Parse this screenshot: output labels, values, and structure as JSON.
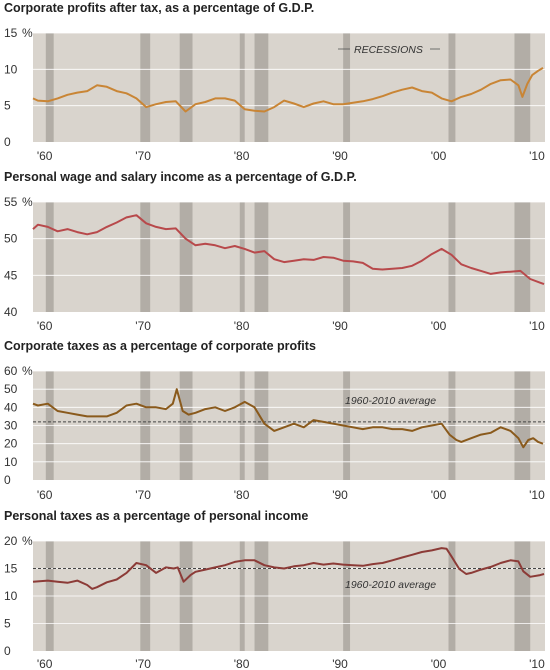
{
  "colors": {
    "plot_background": "#d9d4cd",
    "recession_band": "#b2ada6",
    "gridline": "#ffffff",
    "orange_line": "#c98535",
    "red_line": "#b8494b",
    "brown_line": "#8a5a1c",
    "dark_red_line": "#8c3b37"
  },
  "annotations": {
    "recessions": "RECESSIONS",
    "average": "1960-2010 average"
  },
  "chart_data": [
    {
      "type": "line",
      "title": "Corporate profits after tax, as a percentage of G.D.P.",
      "y_ticks": [
        "15",
        "10",
        "5",
        "0"
      ],
      "y_unit": "%",
      "x_ticks": [
        "'60",
        "'70",
        "'80",
        "'90",
        "'00",
        "'10"
      ],
      "xlim": [
        1959,
        2011
      ],
      "ylim": [
        0,
        15
      ],
      "recessions": [
        [
          1960.3,
          1961.1
        ],
        [
          1969.9,
          1970.9
        ],
        [
          1973.9,
          1975.2
        ],
        [
          1980.0,
          1980.5
        ],
        [
          1981.5,
          1982.9
        ],
        [
          1990.5,
          1991.2
        ],
        [
          2001.2,
          2001.9
        ],
        [
          2007.9,
          2009.5
        ]
      ],
      "average": null,
      "series": [
        {
          "color": "orange_line",
          "x": [
            1959,
            1959.5,
            1960.5,
            1961.5,
            1962.5,
            1963.5,
            1964.5,
            1965.5,
            1966.5,
            1967.5,
            1968.5,
            1969.5,
            1970.5,
            1971.5,
            1972.5,
            1973.5,
            1974.5,
            1975.5,
            1976.5,
            1977.5,
            1978.5,
            1979.5,
            1980.5,
            1981.5,
            1982.5,
            1983.5,
            1984.5,
            1985.5,
            1986.5,
            1987.5,
            1988.5,
            1989.5,
            1990.5,
            1991.5,
            1992.5,
            1993.5,
            1994.5,
            1995.5,
            1996.5,
            1997.5,
            1998.5,
            1999.5,
            2000.5,
            2001.5,
            2002.5,
            2003.5,
            2004.5,
            2005.5,
            2006.5,
            2007.5,
            2008.3,
            2008.7,
            2009.2,
            2009.7,
            2010.3,
            2010.8
          ],
          "values": [
            6.0,
            5.7,
            5.6,
            6.0,
            6.5,
            6.8,
            7.0,
            7.8,
            7.6,
            7.0,
            6.7,
            6.0,
            4.8,
            5.2,
            5.5,
            5.6,
            4.2,
            5.2,
            5.5,
            6.0,
            6.0,
            5.7,
            4.5,
            4.3,
            4.2,
            4.8,
            5.7,
            5.3,
            4.8,
            5.3,
            5.6,
            5.2,
            5.2,
            5.4,
            5.6,
            5.9,
            6.3,
            6.8,
            7.2,
            7.5,
            7.0,
            6.8,
            6.0,
            5.6,
            6.2,
            6.6,
            7.2,
            8.0,
            8.5,
            8.6,
            7.8,
            6.2,
            8.0,
            9.2,
            9.8,
            10.2
          ]
        }
      ]
    },
    {
      "type": "line",
      "title": "Personal wage and salary income as a percentage of G.D.P.",
      "y_ticks": [
        "55",
        "50",
        "45",
        "40"
      ],
      "y_unit": "%",
      "x_ticks": [
        "'60",
        "'70",
        "'80",
        "'90",
        "'00",
        "'10"
      ],
      "xlim": [
        1959,
        2011
      ],
      "ylim": [
        40,
        55
      ],
      "recessions": [
        [
          1960.3,
          1961.1
        ],
        [
          1969.9,
          1970.9
        ],
        [
          1973.9,
          1975.2
        ],
        [
          1980.0,
          1980.5
        ],
        [
          1981.5,
          1982.9
        ],
        [
          1990.5,
          1991.2
        ],
        [
          2001.2,
          2001.9
        ],
        [
          2007.9,
          2009.5
        ]
      ],
      "average": null,
      "series": [
        {
          "color": "red_line",
          "x": [
            1959,
            1959.5,
            1960.5,
            1961.5,
            1962.5,
            1963.5,
            1964.5,
            1965.5,
            1966.5,
            1967.5,
            1968.5,
            1969.5,
            1970.5,
            1971.5,
            1972.5,
            1973.5,
            1974.5,
            1975.5,
            1976.5,
            1977.5,
            1978.5,
            1979.5,
            1980.5,
            1981.5,
            1982.5,
            1983.5,
            1984.5,
            1985.5,
            1986.5,
            1987.5,
            1988.5,
            1989.5,
            1990.5,
            1991.5,
            1992.5,
            1993.5,
            1994.5,
            1995.5,
            1996.5,
            1997.5,
            1998.5,
            1999.5,
            2000.5,
            2001.5,
            2002.5,
            2003.5,
            2004.5,
            2005.5,
            2006.5,
            2007.5,
            2008.5,
            2009.5,
            2010.5,
            2010.9
          ],
          "values": [
            51.3,
            51.9,
            51.6,
            51.0,
            51.3,
            50.9,
            50.6,
            50.9,
            51.6,
            52.2,
            52.9,
            53.2,
            52.1,
            51.6,
            51.3,
            51.4,
            50.0,
            49.1,
            49.3,
            49.1,
            48.7,
            49.0,
            48.6,
            48.1,
            48.3,
            47.2,
            46.8,
            47.0,
            47.2,
            47.1,
            47.5,
            47.4,
            47.0,
            46.9,
            46.7,
            45.9,
            45.8,
            45.9,
            46.0,
            46.3,
            47.0,
            47.9,
            48.6,
            47.8,
            46.5,
            46.0,
            45.6,
            45.2,
            45.4,
            45.5,
            45.6,
            44.5,
            44.0,
            43.8
          ]
        }
      ]
    },
    {
      "type": "line",
      "title": "Corporate taxes as a percentage of corporate profits",
      "y_ticks": [
        "60",
        "50",
        "40",
        "30",
        "20",
        "10",
        "0"
      ],
      "y_unit": "%",
      "x_ticks": [
        "'60",
        "'70",
        "'80",
        "'90",
        "'00",
        "'10"
      ],
      "xlim": [
        1959,
        2011
      ],
      "ylim": [
        0,
        60
      ],
      "recessions": [
        [
          1960.3,
          1961.1
        ],
        [
          1969.9,
          1970.9
        ],
        [
          1973.9,
          1975.2
        ],
        [
          1980.0,
          1980.5
        ],
        [
          1981.5,
          1982.9
        ],
        [
          1990.5,
          1991.2
        ],
        [
          2001.2,
          2001.9
        ],
        [
          2007.9,
          2009.5
        ]
      ],
      "average": 32,
      "series": [
        {
          "color": "brown_line",
          "x": [
            1959,
            1959.5,
            1960.5,
            1961.5,
            1962.5,
            1963.5,
            1964.5,
            1965.5,
            1966.5,
            1967.5,
            1968.5,
            1969.5,
            1970.5,
            1971.5,
            1972.5,
            1973.2,
            1973.6,
            1974.2,
            1974.8,
            1975.5,
            1976.5,
            1977.5,
            1978.5,
            1979.5,
            1980.5,
            1981.5,
            1982.5,
            1983.5,
            1984.5,
            1985.5,
            1986.5,
            1987.5,
            1988.5,
            1989.5,
            1990.5,
            1991.5,
            1992.5,
            1993.5,
            1994.5,
            1995.5,
            1996.5,
            1997.5,
            1998.5,
            1999.5,
            2000.5,
            2001.3,
            2002.0,
            2002.5,
            2003.5,
            2004.5,
            2005.5,
            2006.5,
            2007.5,
            2008.3,
            2008.8,
            2009.3,
            2009.8,
            2010.3,
            2010.8
          ],
          "values": [
            42,
            41,
            42,
            38,
            37,
            36,
            35,
            35,
            35,
            37,
            41,
            42,
            40,
            40,
            39,
            42,
            50,
            38,
            36,
            37,
            39,
            40,
            38,
            40,
            43,
            40,
            31,
            27,
            29,
            31,
            29,
            33,
            32,
            31,
            30,
            29,
            28,
            29,
            29,
            28,
            28,
            27,
            29,
            30,
            31,
            25,
            22,
            21,
            23,
            25,
            26,
            29,
            27,
            23,
            18,
            22,
            23,
            21,
            20
          ]
        }
      ]
    },
    {
      "type": "line",
      "title": "Personal taxes as a percentage of personal income",
      "y_ticks": [
        "20",
        "15",
        "10",
        "5",
        "0"
      ],
      "y_unit": "%",
      "x_ticks": [
        "'60",
        "'70",
        "'80",
        "'90",
        "'00",
        "'10"
      ],
      "xlim": [
        1959,
        2011
      ],
      "ylim": [
        0,
        20
      ],
      "recessions": [
        [
          1960.3,
          1961.1
        ],
        [
          1969.9,
          1970.9
        ],
        [
          1973.9,
          1975.2
        ],
        [
          1980.0,
          1980.5
        ],
        [
          1981.5,
          1982.9
        ],
        [
          1990.5,
          1991.2
        ],
        [
          2001.2,
          2001.9
        ],
        [
          2007.9,
          2009.5
        ]
      ],
      "average": 15,
      "series": [
        {
          "color": "dark_red_line",
          "x": [
            1959,
            1960.5,
            1961.5,
            1962.5,
            1963.5,
            1964.5,
            1965.0,
            1965.5,
            1966.5,
            1967.5,
            1968.5,
            1969.5,
            1970.5,
            1971.5,
            1972.5,
            1973.3,
            1973.7,
            1974.3,
            1975.0,
            1975.5,
            1976.5,
            1977.5,
            1978.5,
            1979.5,
            1980.5,
            1981.5,
            1982.5,
            1983.5,
            1984.5,
            1985.5,
            1986.5,
            1987.5,
            1988.5,
            1989.5,
            1990.5,
            1991.5,
            1992.5,
            1993.5,
            1994.5,
            1995.5,
            1996.5,
            1997.5,
            1998.5,
            1999.5,
            2000.5,
            2001.0,
            2001.5,
            2002.3,
            2003.0,
            2003.5,
            2004.5,
            2005.5,
            2006.5,
            2007.5,
            2008.3,
            2008.8,
            2009.5,
            2010.5,
            2010.9
          ],
          "values": [
            12.6,
            12.8,
            12.6,
            12.4,
            12.8,
            12.0,
            11.3,
            11.6,
            12.5,
            13.0,
            14.2,
            16.0,
            15.6,
            14.2,
            15.2,
            15.0,
            15.2,
            12.6,
            13.8,
            14.4,
            14.8,
            15.2,
            15.6,
            16.2,
            16.5,
            16.5,
            15.6,
            15.2,
            15.0,
            15.4,
            15.6,
            16.0,
            15.7,
            15.9,
            15.7,
            15.6,
            15.5,
            15.8,
            16.0,
            16.5,
            17.0,
            17.5,
            18.0,
            18.3,
            18.7,
            18.6,
            17.2,
            14.9,
            14.0,
            14.2,
            14.8,
            15.3,
            16.0,
            16.5,
            16.3,
            14.5,
            13.5,
            13.8,
            14.0
          ]
        }
      ]
    }
  ]
}
